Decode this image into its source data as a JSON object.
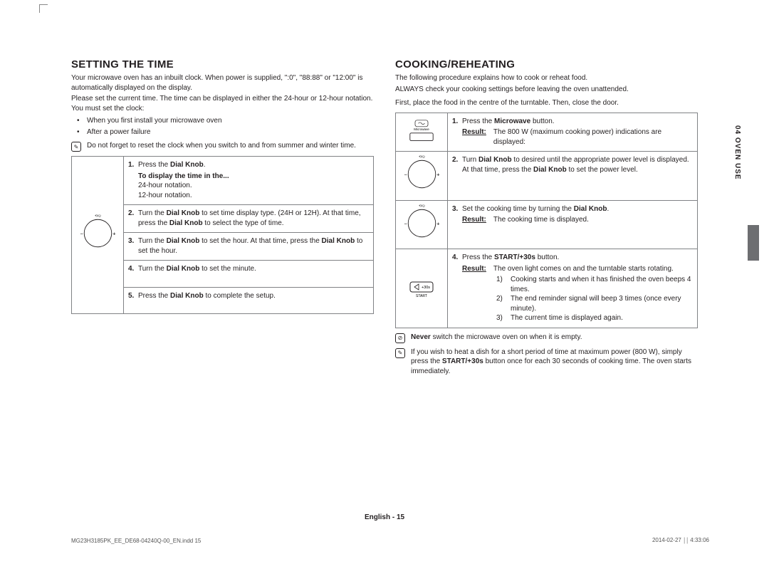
{
  "page": {
    "side_section": "04  OVEN USE",
    "footer_center": "English - 15",
    "footer_left": "MG23H3185PK_EE_DE68-04240Q-00_EN.indd   15",
    "footer_right": "2014-02-27   ￨￨ 4:33:06"
  },
  "left": {
    "heading": "SETTING THE TIME",
    "p1": "Your microwave oven has an inbuilt clock. When power is supplied, \":0\", \"88:88\" or \"12:00\" is automatically displayed on the display.",
    "p2": "Please set the current time. The time can be displayed in either the 24-hour or 12-hour notation. You must set the clock:",
    "bul1": "When you first install your microwave oven",
    "bul2": "After a power failure",
    "note": "Do not forget to reset the clock when you switch to and from summer and winter time.",
    "steps": [
      {
        "num": "1.",
        "text": "Press the <b>Dial Knob</b>.",
        "sub_bold": "To display the time in the...",
        "sub1": "24-hour notation.",
        "sub2": "12-hour notation."
      },
      {
        "num": "2.",
        "text": "Turn the <b>Dial Knob</b> to set time display type. (24H or 12H). At that time, press the <b>Dial Knob</b> to select the type of time."
      },
      {
        "num": "3.",
        "text": "Turn the <b>Dial Knob</b> to set the hour. At that time, press the <b>Dial Knob</b> to set the hour."
      },
      {
        "num": "4.",
        "text": "Turn the <b>Dial Knob</b> to set the minute."
      },
      {
        "num": "5.",
        "text": "Press the <b>Dial Knob</b> to complete the setup."
      }
    ]
  },
  "right": {
    "heading": "COOKING/REHEATING",
    "p1": "The following procedure explains how to cook or reheat food.",
    "p2": "ALWAYS check your cooking settings before leaving the oven unattended.",
    "p3": "First, place the food in the centre of the turntable. Then, close the door.",
    "steps": [
      {
        "num": "1.",
        "icon": "microwave",
        "text": "Press the <b>Microwave</b> button.",
        "result": "The 800 W (maximum cooking power) indications are displayed:"
      },
      {
        "num": "2.",
        "icon": "dial",
        "text": "Turn <b>Dial Knob</b> to desired until the appropriate power level is displayed. At that time, press the <b>Dial Knob</b> to set the power level."
      },
      {
        "num": "3.",
        "icon": "dial",
        "text": "Set the cooking time by turning the <b>Dial Knob</b>.",
        "result": "The cooking time is displayed."
      },
      {
        "num": "4.",
        "icon": "start",
        "text": "Press the <b>START/+30s</b> button.",
        "result": "The oven light comes on and the turntable starts rotating.",
        "list": [
          "Cooking starts and when it has finished the oven beeps 4 times.",
          "The end reminder signal will beep 3 times (once every minute).",
          "The current time is displayed again."
        ]
      }
    ],
    "warn": "<b>Never</b> switch the microwave oven on when it is empty.",
    "tip": "If you wish to heat a dish for a short period of time at maximum power (800 W), simply press the <b>START/+30s</b> button once for each 30 seconds of cooking time. The oven starts immediately."
  },
  "style": {
    "text_color": "#231f20",
    "border_color": "#808285",
    "sidebar_bg": "#6d6e71",
    "background": "#ffffff"
  }
}
